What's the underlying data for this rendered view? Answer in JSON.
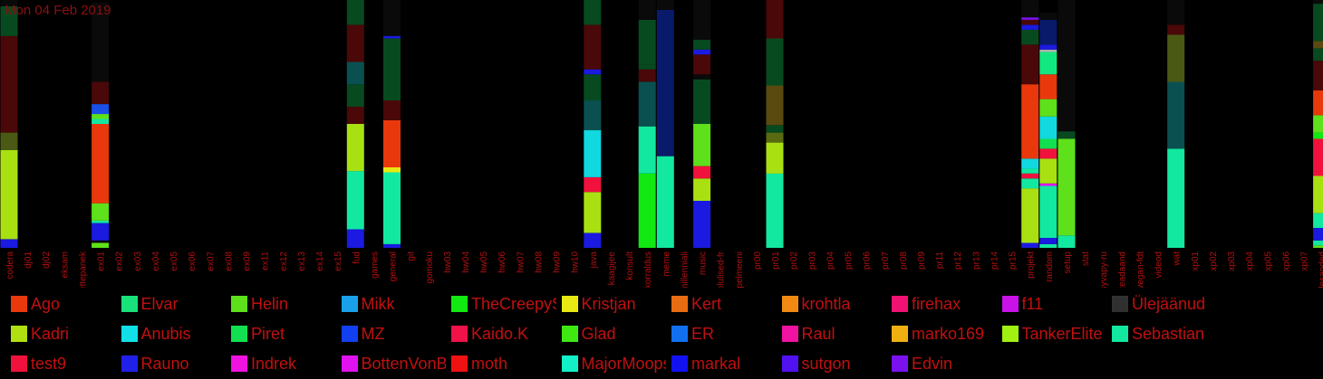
{
  "header": {
    "date": "Mon 04 Feb 2019"
  },
  "chart_data": {
    "type": "bar",
    "stacked": true,
    "normalized": true,
    "ylim": [
      0,
      1
    ],
    "categories": [
      "codera",
      "dj01",
      "dj02",
      "eksam",
      "ettepanek",
      "ex01",
      "ex02",
      "ex03",
      "ex04",
      "ex05",
      "ex06",
      "ex07",
      "ex08",
      "ex09",
      "ex11",
      "ex12",
      "ex13",
      "ex14",
      "ex15",
      "fud",
      "games",
      "general",
      "git",
      "gomoku",
      "hw03",
      "hw04",
      "hw05",
      "hw06",
      "hw07",
      "hw08",
      "hw09",
      "hw10",
      "java",
      "kaagijee",
      "konsult",
      "korraldus",
      "meme",
      "millenniali",
      "music",
      "olulised-fr",
      "pelmeeni",
      "pr00",
      "pr01",
      "pr02",
      "pr03",
      "pr04",
      "pr05",
      "pr06",
      "pr07",
      "pr08",
      "pr09",
      "pr11",
      "pr12",
      "pr13",
      "pr14",
      "pr15",
      "projekt",
      "random",
      "setup",
      "stat",
      "syvapy-ru",
      "teadaand",
      "vegan-fdt",
      "videod",
      "wat",
      "xp01",
      "xp02",
      "xp03",
      "xp04",
      "xp05",
      "xp06",
      "xp07",
      "ülesanded"
    ],
    "legend": [
      {
        "name": "Ago",
        "color": "#e8380c"
      },
      {
        "name": "Elvar",
        "color": "#19e07a"
      },
      {
        "name": "Helin",
        "color": "#5ee01a"
      },
      {
        "name": "Mikk",
        "color": "#1aa0e8"
      },
      {
        "name": "TheCreepySh",
        "color": "#12e812"
      },
      {
        "name": "Kristjan",
        "color": "#e8e812"
      },
      {
        "name": "Kert",
        "color": "#e86c12"
      },
      {
        "name": "krohtla",
        "color": "#f08a12"
      },
      {
        "name": "firehax",
        "color": "#f01270"
      },
      {
        "name": "f11",
        "color": "#c812e8"
      },
      {
        "name": "Ülejäänud",
        "color": "#303030"
      },
      {
        "name": "Kadri",
        "color": "#b0e012"
      },
      {
        "name": "Anubis",
        "color": "#12e0e8"
      },
      {
        "name": "Piret",
        "color": "#12e050"
      },
      {
        "name": "MZ",
        "color": "#1240f0"
      },
      {
        "name": "Kaido.K",
        "color": "#f01248"
      },
      {
        "name": "Glad",
        "color": "#40e812"
      },
      {
        "name": "ER",
        "color": "#1270f0"
      },
      {
        "name": "Raul",
        "color": "#f012a0"
      },
      {
        "name": "marko169",
        "color": "#f0b012"
      },
      {
        "name": "TankerElite",
        "color": "#a0f012"
      },
      {
        "name": "Sebastian",
        "color": "#12e8a0"
      },
      {
        "name": "test9",
        "color": "#f0123c"
      },
      {
        "name": "Rauno",
        "color": "#2020e8"
      },
      {
        "name": "Indrek",
        "color": "#f012e0"
      },
      {
        "name": "BottenVonBot",
        "color": "#e012f0"
      },
      {
        "name": "moth",
        "color": "#f01212"
      },
      {
        "name": "MajorMoopsy",
        "color": "#12f0c8"
      },
      {
        "name": "markal",
        "color": "#1212f0"
      },
      {
        "name": "sutgon",
        "color": "#5012f0"
      },
      {
        "name": "Edvin",
        "color": "#7a12f0"
      }
    ],
    "bars": {
      "codera": [
        [
          "#1a1ae0",
          0.035
        ],
        [
          "#a8e012",
          0.36
        ],
        [
          "#4a5a14",
          0.07
        ],
        [
          "#4a0808",
          0.39
        ],
        [
          "#084a20",
          0.12
        ],
        [
          "#0a0a0a",
          0.025
        ]
      ],
      "ex01": [
        [
          "#5ee01a",
          0.02
        ],
        [
          "#0a0a0a",
          0.01
        ],
        [
          "#1a1ae0",
          0.07
        ],
        [
          "#12e8a0",
          0.01
        ],
        [
          "#5ee01a",
          0.07
        ],
        [
          "#e8380c",
          0.32
        ],
        [
          "#12e8a0",
          0.02
        ],
        [
          "#5ee01a",
          0.02
        ],
        [
          "#1a50e8",
          0.04
        ],
        [
          "#4a0808",
          0.09
        ],
        [
          "#0a0a0a",
          0.32
        ]
      ],
      "fud": [
        [
          "#1a1ae0",
          0.075
        ],
        [
          "#12e8a0",
          0.235
        ],
        [
          "#a8e012",
          0.19
        ],
        [
          "#4a0808",
          0.07
        ],
        [
          "#084a20",
          0.09
        ],
        [
          "#0a5050",
          0.09
        ],
        [
          "#4a0808",
          0.15
        ],
        [
          "#084a20",
          0.1
        ]
      ],
      "general": [
        [
          "#1a1ae0",
          0.015
        ],
        [
          "#12e8a0",
          0.29
        ],
        [
          "#e8e812",
          0.02
        ],
        [
          "#e8380c",
          0.02
        ],
        [
          "#e8380c",
          0.17
        ],
        [
          "#4a0808",
          0.08
        ],
        [
          "#084a20",
          0.25
        ],
        [
          "#1a1ae0",
          0.01
        ],
        [
          "#0a0a0a",
          0.145
        ]
      ],
      "java": [
        [
          "#1a1ae0",
          0.06
        ],
        [
          "#a8e012",
          0.165
        ],
        [
          "#f0123c",
          0.06
        ],
        [
          "#12d8e0",
          0.19
        ],
        [
          "#0a5050",
          0.12
        ],
        [
          "#084a20",
          0.105
        ],
        [
          "#1a1ae0",
          0.02
        ],
        [
          "#4a0808",
          0.18
        ],
        [
          "#084a20",
          0.1
        ]
      ],
      "korraldus": [
        [
          "#12e812",
          0.3
        ],
        [
          "#12e8a0",
          0.19
        ],
        [
          "#0a5050",
          0.18
        ],
        [
          "#4a0808",
          0.05
        ],
        [
          "#084a20",
          0.02
        ],
        [
          "#084a20",
          0.18
        ],
        [
          "#0a0a0a",
          0.08
        ]
      ],
      "meme": [
        [
          "#12e8a0",
          0.37
        ],
        [
          "#0a1a6a",
          0.59
        ],
        [
          "#0a0a0a",
          0.04
        ]
      ],
      "music": [
        [
          "#1a1ae0",
          0.19
        ],
        [
          "#a8e012",
          0.09
        ],
        [
          "#f0123c",
          0.05
        ],
        [
          "#5ee01a",
          0.17
        ],
        [
          "#084a20",
          0.18
        ],
        [
          "#0a0a0a",
          0.02
        ],
        [
          "#4a0808",
          0.08
        ],
        [
          "#1a1ae0",
          0.02
        ],
        [
          "#084a20",
          0.04
        ],
        [
          "#0a0a0a",
          0.16
        ]
      ],
      "pr01": [
        [
          "#12e8a0",
          0.3
        ],
        [
          "#a8e012",
          0.125
        ],
        [
          "#5a6a10",
          0.04
        ],
        [
          "#084a20",
          0.03
        ],
        [
          "#5a4a10",
          0.16
        ],
        [
          "#084a20",
          0.19
        ],
        [
          "#4a0808",
          0.155
        ]
      ],
      "projekt": [
        [
          "#1a1ae0",
          0.02
        ],
        [
          "#a8e012",
          0.22
        ],
        [
          "#12e8a0",
          0.04
        ],
        [
          "#f0123c",
          0.02
        ],
        [
          "#12e8a0",
          0.02
        ],
        [
          "#12d8e0",
          0.04
        ],
        [
          "#e8380c",
          0.3
        ],
        [
          "#4a0808",
          0.16
        ],
        [
          "#084a20",
          0.06
        ],
        [
          "#1a1ae0",
          0.02
        ],
        [
          "#4a0808",
          0.02
        ],
        [
          "#7a12f0",
          0.01
        ],
        [
          "#0a0a0a",
          0.07
        ]
      ],
      "random": [
        [
          "#12e8a0",
          0.015
        ],
        [
          "#1a1ae0",
          0.025
        ],
        [
          "#12e8a0",
          0.21
        ],
        [
          "#e012f0",
          0.01
        ],
        [
          "#a8e012",
          0.1
        ],
        [
          "#f0123c",
          0.04
        ],
        [
          "#12e050",
          0.04
        ],
        [
          "#12d8e0",
          0.09
        ],
        [
          "#5ee01a",
          0.07
        ],
        [
          "#e8380c",
          0.1
        ],
        [
          "#12e880",
          0.09
        ],
        [
          "#b0b0b0",
          0.01
        ],
        [
          "#1a1ae0",
          0.02
        ],
        [
          "#0a1a6a",
          0.1
        ],
        [
          "#0a0a0a",
          0.03
        ]
      ],
      "setup": [
        [
          "#12e8a0",
          0.05
        ],
        [
          "#5ee01a",
          0.39
        ],
        [
          "#084a20",
          0.03
        ],
        [
          "#0a0a0a",
          0.53
        ]
      ],
      "wat": [
        [
          "#12e8a0",
          0.4
        ],
        [
          "#0a5050",
          0.27
        ],
        [
          "#4a5a14",
          0.19
        ],
        [
          "#4a0808",
          0.04
        ],
        [
          "#0a0a0a",
          0.1
        ]
      ],
      "ülesanded": [
        [
          "#5ee01a",
          0.01
        ],
        [
          "#12e8a0",
          0.02
        ],
        [
          "#1a1ae0",
          0.05
        ],
        [
          "#12e8a0",
          0.06
        ],
        [
          "#a8e012",
          0.15
        ],
        [
          "#f0123c",
          0.15
        ],
        [
          "#12e812",
          0.025
        ],
        [
          "#5ee01a",
          0.07
        ],
        [
          "#e8380c",
          0.1
        ],
        [
          "#4a0808",
          0.12
        ],
        [
          "#084a20",
          0.05
        ],
        [
          "#5a4a10",
          0.03
        ],
        [
          "#084a20",
          0.15
        ],
        [
          "#0a0a0a",
          0.015
        ]
      ]
    }
  }
}
